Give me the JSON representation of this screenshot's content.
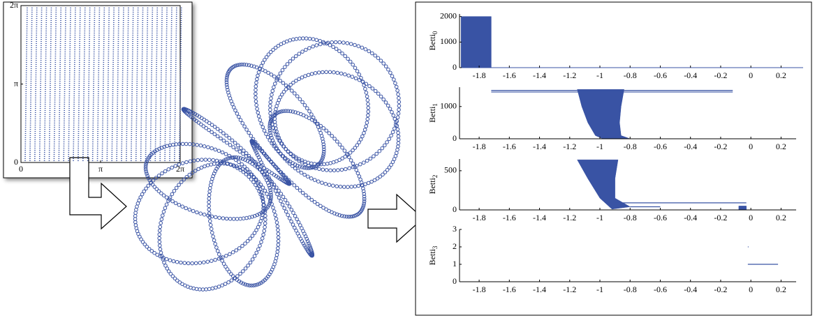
{
  "left_plot": {
    "xlim": [
      0,
      6.2832
    ],
    "ylim": [
      0,
      6.2832
    ],
    "color": "#3953a4",
    "xticks": [
      {
        "value": 0,
        "label": "0"
      },
      {
        "value": 3.1416,
        "label": "π"
      },
      {
        "value": 6.2832,
        "label": "2π"
      }
    ],
    "yticks": [
      {
        "value": 0,
        "label": "0"
      },
      {
        "value": 3.1416,
        "label": "π"
      },
      {
        "value": 6.2832,
        "label": "2π"
      }
    ]
  },
  "chart_data": [
    {
      "type": "barcode",
      "ylabel": "Betti",
      "ylabel_sub": "0",
      "xlim": [
        -1.93,
        0.3
      ],
      "ylim": [
        0,
        2100
      ],
      "xticks": [
        -1.8,
        -1.6,
        -1.4,
        -1.2,
        -1,
        -0.8,
        -0.6,
        -0.4,
        -0.2,
        0,
        0.2
      ],
      "yticks": [
        0,
        1000,
        2000
      ],
      "color": "#3953a4",
      "shapes": [
        {
          "x": [
            -1.92,
            -1.72,
            -1.72,
            -1.92
          ],
          "y": [
            0,
            0,
            2000,
            2000
          ]
        }
      ],
      "lines": []
    },
    {
      "type": "barcode",
      "ylabel": "Betti",
      "ylabel_sub": "1",
      "xlim": [
        -1.93,
        0.3
      ],
      "ylim": [
        0,
        1600
      ],
      "xticks": [
        -1.8,
        -1.6,
        -1.4,
        -1.2,
        -1,
        -0.8,
        -0.6,
        -0.4,
        -0.2,
        0,
        0.2
      ],
      "yticks": [
        0,
        1000
      ],
      "color": "#3953a4",
      "shapes": [
        {
          "x": [
            -1.15,
            -0.84,
            -0.86,
            -0.87,
            -0.86,
            -0.8,
            -0.98,
            -1.03,
            -1.08,
            -1.12
          ],
          "y": [
            1530,
            1530,
            1000,
            500,
            100,
            0,
            0,
            100,
            500,
            1000
          ]
        }
      ],
      "lines": [
        {
          "x": [
            -1.72,
            -0.12
          ],
          "y": [
            1500,
            1500
          ]
        },
        {
          "x": [
            -1.72,
            -0.12
          ],
          "y": [
            1450,
            1450
          ]
        }
      ]
    },
    {
      "type": "barcode",
      "ylabel": "Betti",
      "ylabel_sub": "2",
      "xlim": [
        -1.93,
        0.3
      ],
      "ylim": [
        0,
        650
      ],
      "xticks": [
        -1.8,
        -1.6,
        -1.4,
        -1.2,
        -1,
        -0.8,
        -0.6,
        -0.4,
        -0.2,
        0,
        0.2
      ],
      "yticks": [
        0,
        500
      ],
      "color": "#3953a4",
      "shapes": [
        {
          "x": [
            -1.15,
            -0.88,
            -0.9,
            -0.9,
            -0.8,
            -0.92,
            -1.0,
            -1.08
          ],
          "y": [
            640,
            640,
            400,
            150,
            40,
            10,
            150,
            400
          ]
        },
        {
          "x": [
            -0.08,
            -0.03,
            -0.03,
            -0.08
          ],
          "y": [
            0,
            0,
            50,
            50
          ]
        }
      ],
      "lines": [
        {
          "x": [
            -0.9,
            -0.03
          ],
          "y": [
            90,
            90
          ]
        },
        {
          "x": [
            -0.8,
            -0.6
          ],
          "y": [
            40,
            40
          ]
        }
      ]
    },
    {
      "type": "barcode",
      "ylabel": "Betti",
      "ylabel_sub": "3",
      "xlim": [
        -1.93,
        0.3
      ],
      "ylim": [
        0,
        3
      ],
      "xticks": [
        -1.8,
        -1.6,
        -1.4,
        -1.2,
        -1,
        -0.8,
        -0.6,
        -0.4,
        -0.2,
        0,
        0.2
      ],
      "yticks": [
        0,
        1,
        2,
        3
      ],
      "color": "#3953a4",
      "shapes": [],
      "lines": [
        {
          "x": [
            -0.02,
            0.18
          ],
          "y": [
            1,
            1
          ]
        },
        {
          "x": [
            -0.02,
            -0.015
          ],
          "y": [
            2,
            2
          ]
        }
      ]
    }
  ]
}
